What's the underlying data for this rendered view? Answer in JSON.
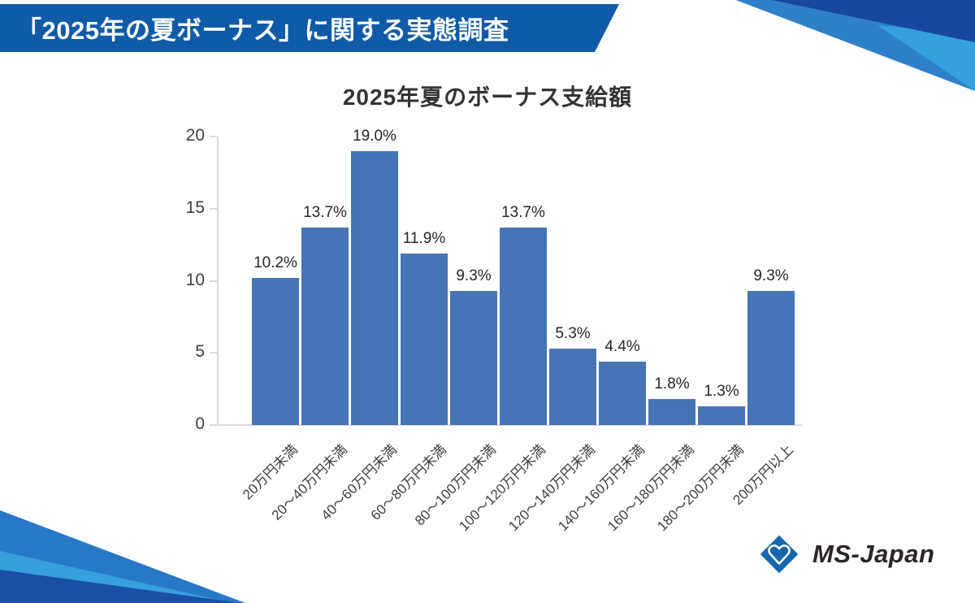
{
  "header": {
    "banner_title": "「2025年の夏ボーナス」に関する実態調査"
  },
  "chart_data": {
    "type": "bar",
    "title": "2025年夏のボーナス支給額",
    "categories": [
      "20万円未満",
      "20〜40万円未満",
      "40〜60万円未満",
      "60〜80万円未満",
      "80〜100万円未満",
      "100〜120万円未満",
      "120〜140万円未満",
      "140〜160万円未満",
      "160〜180万円未満",
      "180〜200万円未満",
      "200万円以上"
    ],
    "values": [
      10.2,
      13.7,
      19.0,
      11.9,
      9.3,
      13.7,
      5.3,
      4.4,
      1.8,
      1.3,
      9.3
    ],
    "data_labels": [
      "10.2%",
      "13.7%",
      "19.0%",
      "11.9%",
      "9.3%",
      "13.7%",
      "5.3%",
      "4.4%",
      "1.8%",
      "1.3%",
      "9.3%"
    ],
    "xlabel": "",
    "ylabel": "",
    "ylim": [
      0,
      20
    ],
    "yticks": [
      0,
      5,
      10,
      15,
      20
    ],
    "grid": false,
    "legend": false,
    "bar_color": "#4674B4"
  },
  "logo": {
    "brand": "MS-Japan"
  },
  "colors": {
    "banner_blue": "#0F5BA8",
    "bar_blue": "#4674B4",
    "decor_navy": "#17479E",
    "decor_medium_blue": "#2E80C9",
    "decor_light_blue": "#36A0DC",
    "decor_dark_blue": "#1A4FA5",
    "axis_gray": "#D9D9D9"
  }
}
